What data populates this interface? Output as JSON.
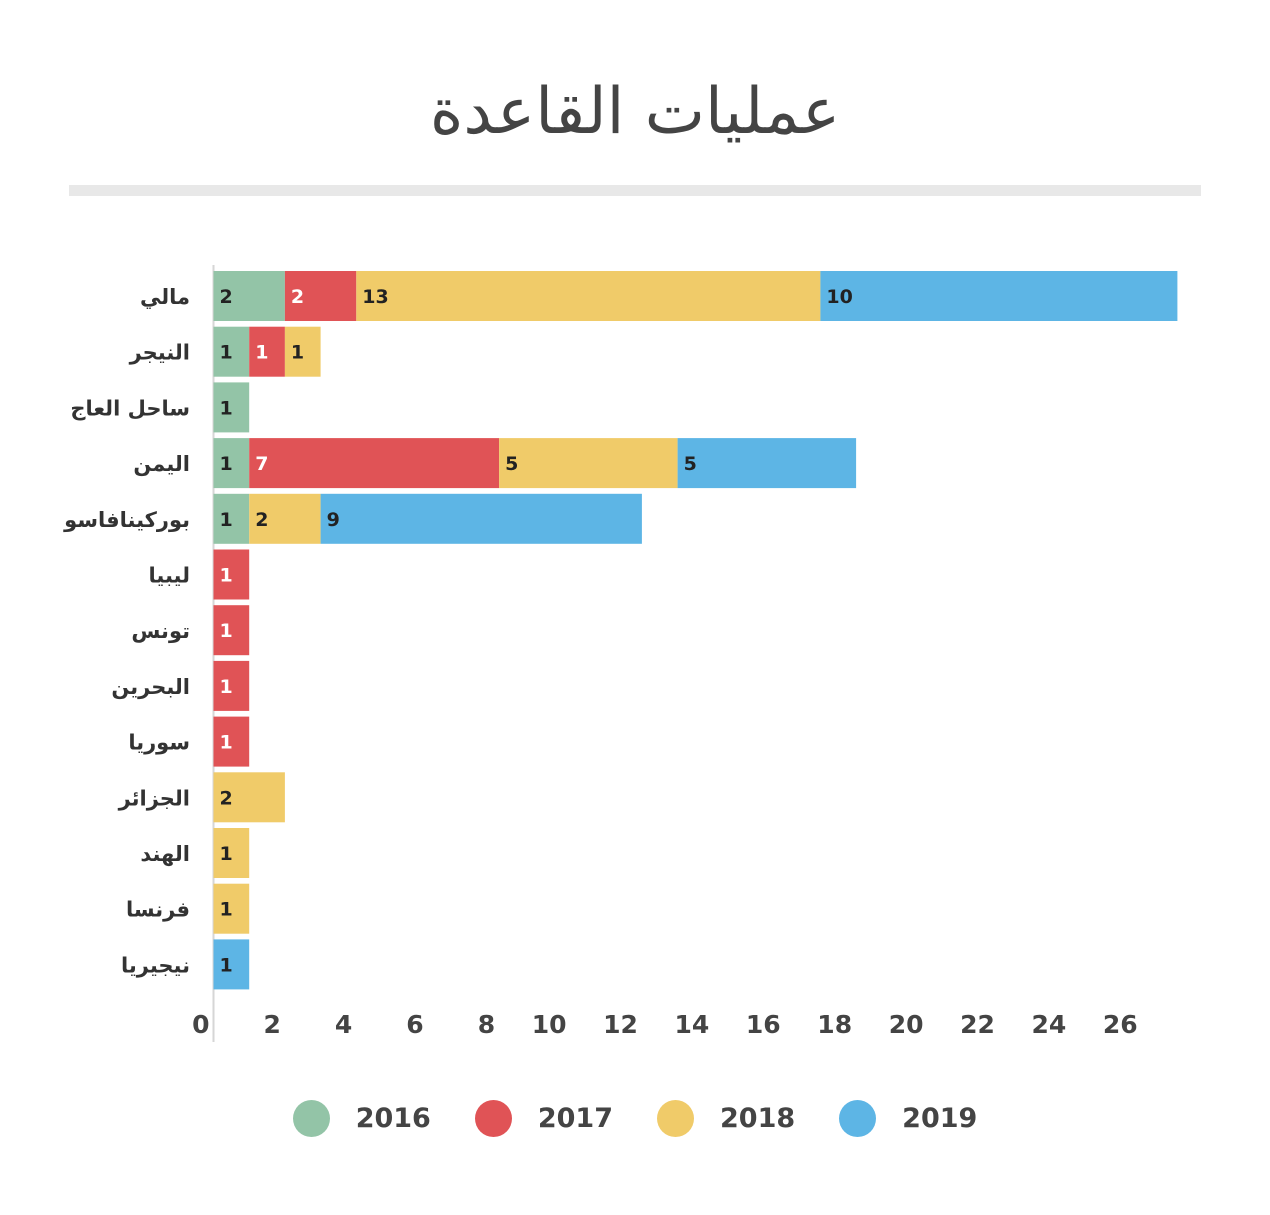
{
  "chart_data": {
    "type": "bar",
    "orientation": "horizontal",
    "stacked": true,
    "title": "عمليات القاعدة",
    "categories": [
      "مالي",
      "النيجر",
      "ساحل العاج",
      "اليمن",
      "بوركينافاسو",
      "ليبيا",
      "تونس",
      "البحرين",
      "سوريا",
      "الجزائر",
      "الهند",
      "فرنسا",
      "نيجيريا"
    ],
    "series": [
      {
        "name": "2016",
        "color": "#93c4a7",
        "values": [
          2,
          1,
          1,
          1,
          1,
          0,
          0,
          0,
          0,
          0,
          0,
          0,
          0
        ]
      },
      {
        "name": "2017",
        "color": "#e05356",
        "values": [
          2,
          1,
          0,
          7,
          0,
          1,
          1,
          1,
          1,
          0,
          0,
          0,
          0
        ]
      },
      {
        "name": "2018",
        "color": "#f0cb69",
        "values": [
          13,
          1,
          0,
          5,
          2,
          0,
          0,
          0,
          0,
          2,
          1,
          1,
          0
        ]
      },
      {
        "name": "2019",
        "color": "#5db5e5",
        "values": [
          10,
          0,
          0,
          5,
          9,
          0,
          0,
          0,
          0,
          0,
          0,
          0,
          1
        ]
      }
    ],
    "xlim": [
      0,
      26
    ],
    "xticks": [
      "0",
      "2",
      "4",
      "6",
      "8",
      "10",
      "12",
      "14",
      "16",
      "18",
      "20",
      "22",
      "24",
      "26"
    ],
    "grid": false,
    "legend_position": "bottom"
  }
}
